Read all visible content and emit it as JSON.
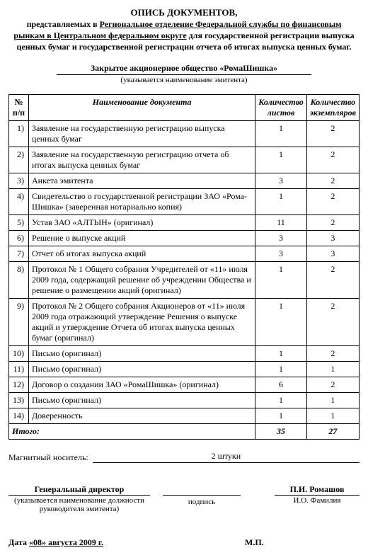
{
  "title": {
    "line1": "ОПИСЬ ДОКУМЕНТОВ,",
    "prefix": "представляемых в ",
    "underlined1": "Региональное отделение Федеральной службы по финансовым",
    "underlined2": "рынкам в Центральном федеральном округе",
    "suffix": " для государственной регистрации выпуска ценных бумаг и государственной регистрации отчета об итогах выпуска ценных бумаг."
  },
  "company": {
    "name": "Закрытое акционерное общество «РомаШишка»",
    "hint": "(указывается наименование эмитента)"
  },
  "table": {
    "head": {
      "n": "№ п/п",
      "name": "Наименование документа",
      "sheets": "Количество листов",
      "copies": "Количество экземпляров"
    },
    "rows": [
      {
        "n": "1)",
        "name": "Заявление на государственную регистрацию выпуска ценных бумаг",
        "s": "1",
        "c": "2"
      },
      {
        "n": "2)",
        "name": "Заявление на государственную регистрацию отчета об итогах выпуска ценных бумаг",
        "s": "1",
        "c": "2"
      },
      {
        "n": "3)",
        "name": "Анкета эмитента",
        "s": "3",
        "c": "2"
      },
      {
        "n": "4)",
        "name": "Свидетельство о государственной регистрации ЗАО «Рома-Шишка» (заверенная нотариально копия)",
        "s": "1",
        "c": "2"
      },
      {
        "n": "5)",
        "name": "Устав ЗАО «АЛТЫН» (оригинал)",
        "s": "11",
        "c": "2"
      },
      {
        "n": "6)",
        "name": "Решение о выпуске акций",
        "s": "3",
        "c": "3"
      },
      {
        "n": "7)",
        "name": "Отчет об итогах выпуска акций",
        "s": "3",
        "c": "3"
      },
      {
        "n": "8)",
        "name": "Протокол № 1 Общего собрания Учредителей от «11» июля 2009 года, содержащий решение об учреждении Общества и решение о размещении акций (оригинал)",
        "s": "1",
        "c": "2"
      },
      {
        "n": "9)",
        "name": "Протокол № 2 Общего собрания Акционеров от «11» июля 2009 года отражающий утверждение Решения о выпуске акций и утверждение Отчета об итогах выпуска ценных бумаг (оригинал)",
        "s": "1",
        "c": "2"
      },
      {
        "n": "10)",
        "name": "Письмо (оригинал)",
        "s": "1",
        "c": "2"
      },
      {
        "n": "11)",
        "name": "Письмо (оригинал)",
        "s": "1",
        "c": "1"
      },
      {
        "n": "12)",
        "name": "Договор о создании ЗАО «РомаШишка» (оригинал)",
        "s": "6",
        "c": "2"
      },
      {
        "n": "13)",
        "name": "Письмо (оригинал)",
        "s": "1",
        "c": "1"
      },
      {
        "n": "14)",
        "name": "Доверенность",
        "s": "1",
        "c": "1"
      }
    ],
    "total": {
      "label": "Итого:",
      "sheets": "35",
      "copies": "27"
    }
  },
  "magnetic": {
    "label": "Магнитный носитель:",
    "value": "2 штуки"
  },
  "sign": {
    "position": "Генеральный директор",
    "position_hint": "(указывается наименование должности руководителя эмитента)",
    "signature_label": "подпись",
    "fio": "П.И. Ромашов",
    "fio_hint": "И.О. Фамилия"
  },
  "date": {
    "prefix": "Дата ",
    "underlined": "«08» августа 2009 г.",
    "mp": "М.П."
  }
}
